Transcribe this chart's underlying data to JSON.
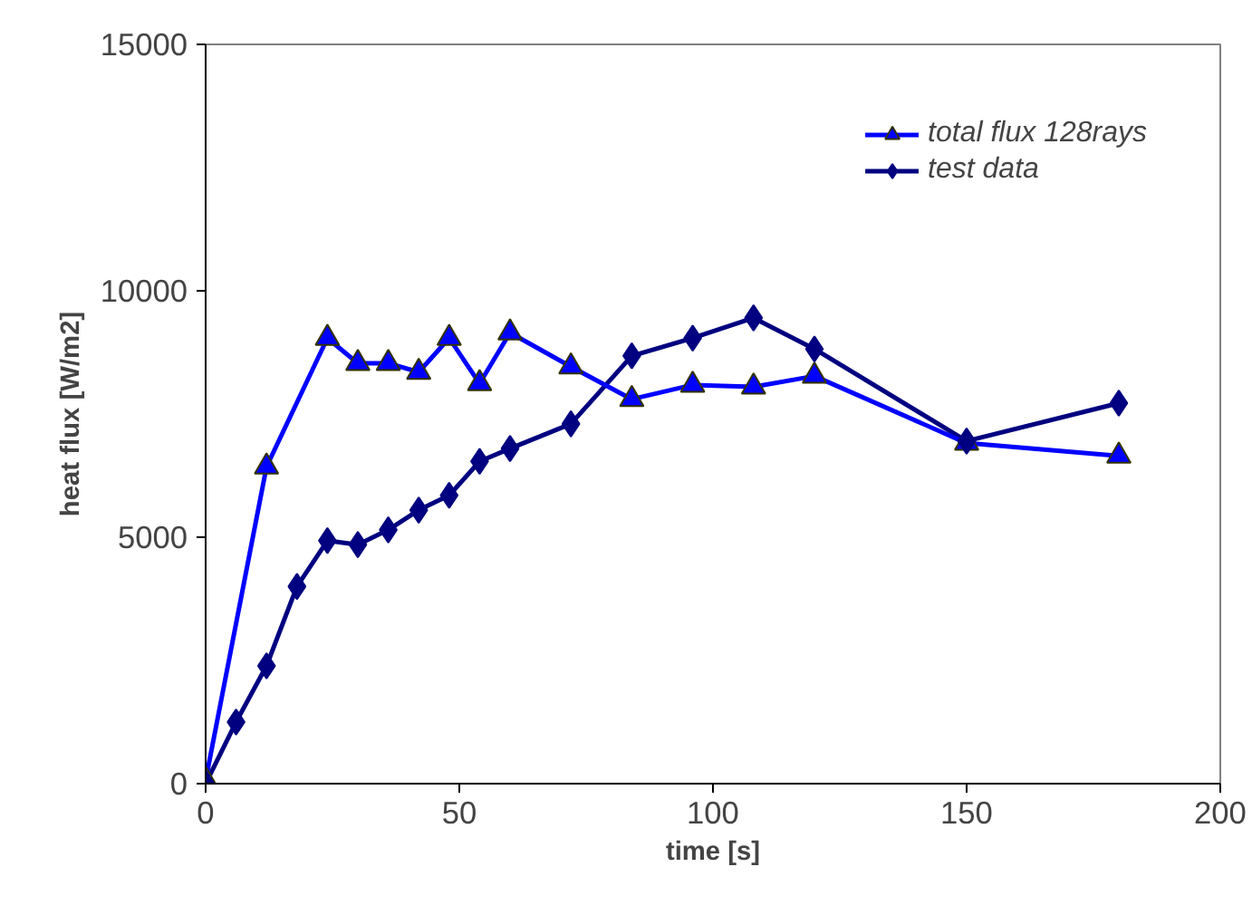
{
  "chart_data": {
    "type": "line",
    "xlabel": "time [s]",
    "ylabel": "heat flux [W/m2]",
    "xlim": [
      0,
      200
    ],
    "xticks": [
      0,
      50,
      100,
      150,
      200
    ],
    "ylim": [
      0,
      15000
    ],
    "yticks": [
      0,
      5000,
      10000,
      15000
    ],
    "grid": false,
    "legend": "top right",
    "line_style": "solid",
    "series": [
      {
        "name": "test data",
        "color": "#000080",
        "marker": "diamond",
        "x": [
          0,
          6,
          12,
          18,
          24,
          30,
          36,
          42,
          48,
          54,
          60,
          72,
          84,
          96,
          108,
          120,
          150,
          180
        ],
        "values": [
          0,
          1250,
          2390,
          4000,
          4930,
          4850,
          5150,
          5550,
          5850,
          6540,
          6800,
          7300,
          8680,
          9040,
          9450,
          8820,
          6950,
          7720
        ]
      },
      {
        "name": "total flux 128rays",
        "color": "#0000ff",
        "marker": "triangle",
        "x": [
          0,
          12,
          24,
          30,
          36,
          42,
          48,
          54,
          60,
          72,
          84,
          96,
          108,
          120,
          150,
          180
        ],
        "values": [
          70,
          6430,
          9040,
          8530,
          8530,
          8350,
          9040,
          8120,
          9150,
          8460,
          7800,
          8090,
          8050,
          8270,
          6910,
          6650
        ]
      }
    ]
  }
}
